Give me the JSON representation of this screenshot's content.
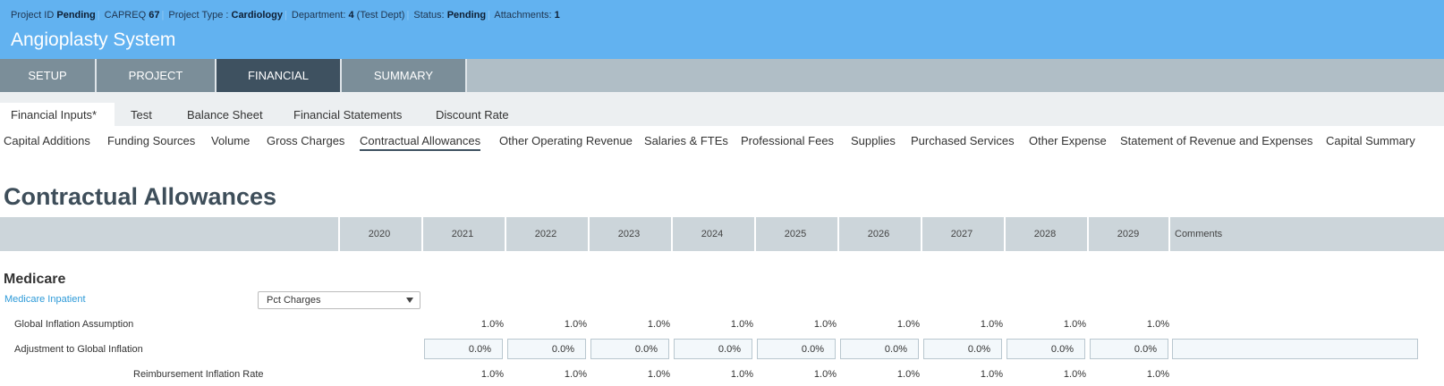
{
  "header": {
    "meta": [
      {
        "label": "Project ID",
        "value": "Pending"
      },
      {
        "label": "CAPREQ",
        "value": "67"
      },
      {
        "label": "Project Type :",
        "value": "Cardiology"
      },
      {
        "label": "Department:",
        "value": "4",
        "extra": "(Test Dept)"
      },
      {
        "label": "Status:",
        "value": "Pending"
      },
      {
        "label": "Attachments:",
        "value": "1"
      }
    ],
    "title": "Angioplasty System"
  },
  "main_tabs": [
    "SETUP",
    "PROJECT",
    "FINANCIAL",
    "SUMMARY"
  ],
  "active_main_tab": "FINANCIAL",
  "sub_tabs": [
    "Financial Inputs*",
    "Test",
    "Balance Sheet",
    "Financial Statements",
    "Discount Rate"
  ],
  "active_sub_tab": "Financial Inputs*",
  "section_nav": [
    "Capital Additions",
    "Funding Sources",
    "Volume",
    "Gross Charges",
    "Contractual Allowances",
    "Other Operating Revenue",
    "Salaries & FTEs",
    "Professional Fees",
    "Supplies",
    "Purchased Services",
    "Other Expense",
    "Statement of Revenue and Expenses",
    "Capital Summary"
  ],
  "active_section": "Contractual Allowances",
  "page_title": "Contractual Allowances",
  "years": [
    "2020",
    "2021",
    "2022",
    "2023",
    "2024",
    "2025",
    "2026",
    "2027",
    "2028",
    "2029"
  ],
  "comments_header": "Comments",
  "section": {
    "title": "Medicare",
    "link": "Medicare Inpatient",
    "method_select": "Pct Charges"
  },
  "rows": {
    "global_inflation": {
      "label": "Global Inflation Assumption",
      "values": [
        "1.0%",
        "1.0%",
        "1.0%",
        "1.0%",
        "1.0%",
        "1.0%",
        "1.0%",
        "1.0%",
        "1.0%"
      ]
    },
    "adjustment": {
      "label": "Adjustment to Global Inflation",
      "values": [
        "0.0%",
        "0.0%",
        "0.0%",
        "0.0%",
        "0.0%",
        "0.0%",
        "0.0%",
        "0.0%",
        "0.0%"
      ],
      "comment": ""
    },
    "reimbursement": {
      "label": "Reimbursement Inflation Rate",
      "values": [
        "1.0%",
        "1.0%",
        "1.0%",
        "1.0%",
        "1.0%",
        "1.0%",
        "1.0%",
        "1.0%",
        "1.0%"
      ]
    }
  },
  "colors": {
    "header": "#62b2f0",
    "active_tab": "#3e5160",
    "tab": "#7b8e99",
    "link": "#2d9ad8"
  }
}
